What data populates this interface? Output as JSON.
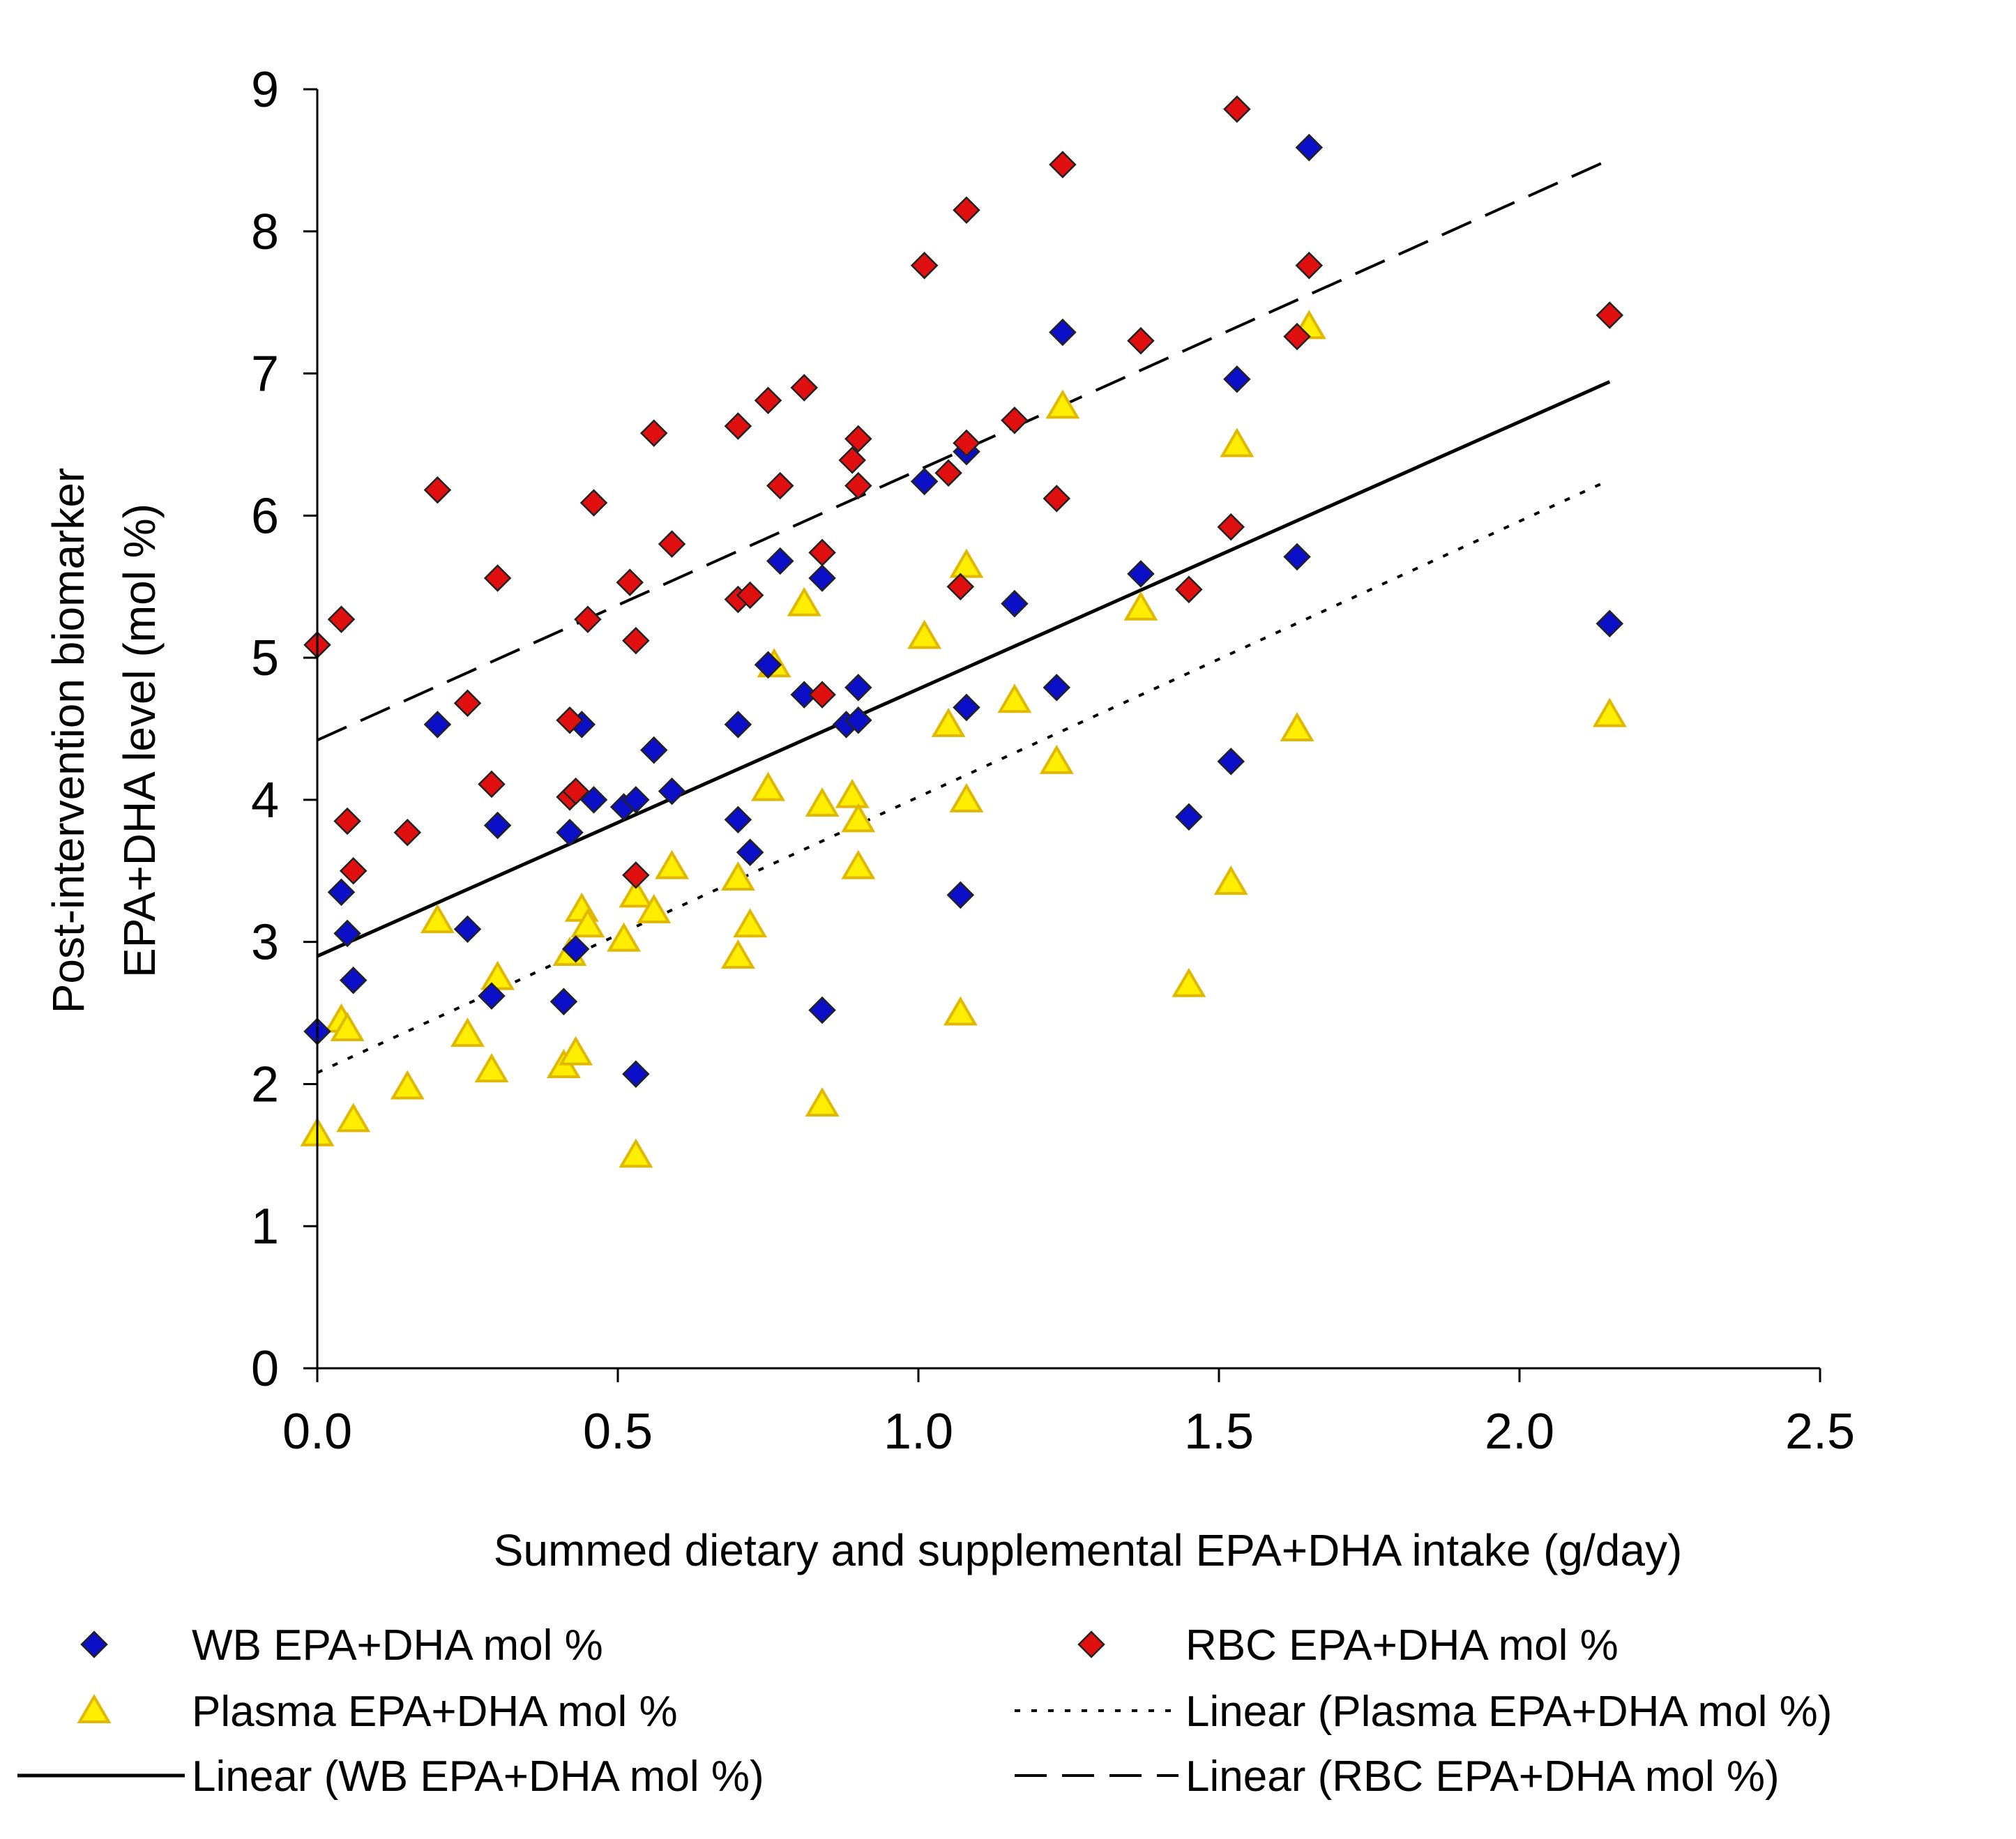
{
  "colors": {
    "wb": "#0b10c8",
    "rbc": "#e01010",
    "plasma": "#ffee00",
    "plasma_edge": "#e0b800",
    "marker_edge": "#222222",
    "axis": "#000000"
  },
  "chart_data": {
    "type": "scatter",
    "xlabel": "Summed dietary and supplemental EPA+DHA intake (g/day)",
    "ylabel_line1": "Post-intervention biomarker",
    "ylabel_line2": "EPA+DHA level (mol %)",
    "xlim": [
      0,
      2.5
    ],
    "ylim": [
      0,
      9
    ],
    "x_ticks": [
      0,
      0.5,
      1.0,
      1.5,
      2.0,
      2.5
    ],
    "x_tick_labels": [
      "0.0",
      "0.5",
      "1.0",
      "1.5",
      "2.0",
      "2.5"
    ],
    "y_ticks": [
      0,
      1,
      2,
      3,
      4,
      5,
      6,
      7,
      8,
      9
    ],
    "y_tick_labels": [
      "0",
      "1",
      "2",
      "3",
      "4",
      "5",
      "6",
      "7",
      "8",
      "9"
    ],
    "grid": false,
    "legend_position": "bottom",
    "series": [
      {
        "id": "wb",
        "name": "WB EPA+DHA mol %",
        "marker": "diamond",
        "points": [
          [
            0,
            2.37
          ],
          [
            0.04,
            3.35
          ],
          [
            0.05,
            3.06
          ],
          [
            0.06,
            2.73
          ],
          [
            0.2,
            4.53
          ],
          [
            0.25,
            3.09
          ],
          [
            0.29,
            2.62
          ],
          [
            0.3,
            3.82
          ],
          [
            0.41,
            2.58
          ],
          [
            0.42,
            3.77
          ],
          [
            0.43,
            2.95
          ],
          [
            0.44,
            4.53
          ],
          [
            0.46,
            4.0
          ],
          [
            0.51,
            3.95
          ],
          [
            0.53,
            4.0
          ],
          [
            0.53,
            2.07
          ],
          [
            0.56,
            4.35
          ],
          [
            0.59,
            4.06
          ],
          [
            0.7,
            4.53
          ],
          [
            0.7,
            3.86
          ],
          [
            0.72,
            3.63
          ],
          [
            0.75,
            4.95
          ],
          [
            0.77,
            5.68
          ],
          [
            0.81,
            4.74
          ],
          [
            0.84,
            5.56
          ],
          [
            0.84,
            2.52
          ],
          [
            0.88,
            4.53
          ],
          [
            0.9,
            4.79
          ],
          [
            0.9,
            4.56
          ],
          [
            1.01,
            6.24
          ],
          [
            1.08,
            6.45
          ],
          [
            1.07,
            3.33
          ],
          [
            1.08,
            4.65
          ],
          [
            1.16,
            5.38
          ],
          [
            1.23,
            4.79
          ],
          [
            1.24,
            7.29
          ],
          [
            1.37,
            5.59
          ],
          [
            1.45,
            3.88
          ],
          [
            1.52,
            4.27
          ],
          [
            1.53,
            6.96
          ],
          [
            1.63,
            5.71
          ],
          [
            1.65,
            8.59
          ],
          [
            2.15,
            5.24
          ]
        ]
      },
      {
        "id": "rbc",
        "name": "RBC EPA+DHA mol %",
        "marker": "diamond",
        "points": [
          [
            0,
            5.09
          ],
          [
            0.04,
            5.27
          ],
          [
            0.05,
            3.85
          ],
          [
            0.06,
            3.5
          ],
          [
            0.15,
            3.77
          ],
          [
            0.2,
            6.18
          ],
          [
            0.25,
            4.68
          ],
          [
            0.29,
            4.11
          ],
          [
            0.3,
            5.56
          ],
          [
            0.42,
            4.56
          ],
          [
            0.42,
            4.02
          ],
          [
            0.43,
            4.06
          ],
          [
            0.45,
            5.27
          ],
          [
            0.46,
            6.09
          ],
          [
            0.52,
            5.53
          ],
          [
            0.53,
            5.12
          ],
          [
            0.53,
            3.47
          ],
          [
            0.56,
            6.58
          ],
          [
            0.59,
            5.8
          ],
          [
            0.7,
            6.63
          ],
          [
            0.7,
            5.41
          ],
          [
            0.72,
            5.44
          ],
          [
            0.75,
            6.81
          ],
          [
            0.77,
            6.21
          ],
          [
            0.81,
            6.9
          ],
          [
            0.84,
            5.74
          ],
          [
            0.84,
            4.74
          ],
          [
            0.89,
            6.39
          ],
          [
            0.9,
            6.21
          ],
          [
            0.9,
            6.54
          ],
          [
            1.01,
            7.76
          ],
          [
            1.05,
            6.3
          ],
          [
            1.07,
            5.5
          ],
          [
            1.08,
            8.15
          ],
          [
            1.08,
            6.51
          ],
          [
            1.16,
            6.67
          ],
          [
            1.23,
            6.12
          ],
          [
            1.24,
            8.47
          ],
          [
            1.37,
            7.23
          ],
          [
            1.45,
            5.48
          ],
          [
            1.52,
            5.92
          ],
          [
            1.53,
            8.86
          ],
          [
            1.63,
            7.26
          ],
          [
            1.65,
            7.76
          ],
          [
            2.15,
            7.41
          ]
        ]
      },
      {
        "id": "plasma",
        "name": "Plasma EPA+DHA mol %",
        "marker": "triangle",
        "points": [
          [
            0,
            1.65
          ],
          [
            0.04,
            2.45
          ],
          [
            0.05,
            2.39
          ],
          [
            0.06,
            1.75
          ],
          [
            0.15,
            1.98
          ],
          [
            0.2,
            3.15
          ],
          [
            0.25,
            2.35
          ],
          [
            0.29,
            2.1
          ],
          [
            0.3,
            2.75
          ],
          [
            0.41,
            2.13
          ],
          [
            0.42,
            2.92
          ],
          [
            0.43,
            2.22
          ],
          [
            0.44,
            3.23
          ],
          [
            0.45,
            3.12
          ],
          [
            0.51,
            3.02
          ],
          [
            0.53,
            3.33
          ],
          [
            0.53,
            1.5
          ],
          [
            0.56,
            3.22
          ],
          [
            0.59,
            3.53
          ],
          [
            0.7,
            3.45
          ],
          [
            0.7,
            2.9
          ],
          [
            0.72,
            3.12
          ],
          [
            0.75,
            4.08
          ],
          [
            0.76,
            4.95
          ],
          [
            0.81,
            5.38
          ],
          [
            0.84,
            3.97
          ],
          [
            0.84,
            1.86
          ],
          [
            0.89,
            4.03
          ],
          [
            0.9,
            3.86
          ],
          [
            0.9,
            3.53
          ],
          [
            1.01,
            5.15
          ],
          [
            1.05,
            4.53
          ],
          [
            1.07,
            2.5
          ],
          [
            1.08,
            4.0
          ],
          [
            1.08,
            5.65
          ],
          [
            1.16,
            4.7
          ],
          [
            1.23,
            4.27
          ],
          [
            1.24,
            6.77
          ],
          [
            1.37,
            5.35
          ],
          [
            1.45,
            2.7
          ],
          [
            1.52,
            3.42
          ],
          [
            1.53,
            6.5
          ],
          [
            1.63,
            4.5
          ],
          [
            1.65,
            7.33
          ],
          [
            2.15,
            4.6
          ]
        ]
      }
    ],
    "trendlines": [
      {
        "id": "wb",
        "name": "Linear (WB EPA+DHA mol %)",
        "style": "solid",
        "intercept": 2.9,
        "slope": 1.88,
        "x_range": [
          0,
          2.15
        ]
      },
      {
        "id": "plasma",
        "name": "Linear (Plasma EPA+DHA mol %)",
        "style": "dotted",
        "intercept": 2.08,
        "slope": 1.94,
        "x_range": [
          0,
          2.15
        ]
      },
      {
        "id": "rbc",
        "name": "Linear (RBC EPA+DHA mol %)",
        "style": "dashed",
        "intercept": 4.42,
        "slope": 1.9,
        "x_range": [
          0,
          2.15
        ]
      }
    ]
  },
  "legend": {
    "items": [
      {
        "id": "wb",
        "label": "WB EPA+DHA mol %",
        "kind": "marker-diamond"
      },
      {
        "id": "rbc",
        "label": "RBC EPA+DHA mol %",
        "kind": "marker-diamond"
      },
      {
        "id": "plasma",
        "label": "Plasma EPA+DHA mol %",
        "kind": "marker-triangle"
      },
      {
        "id": "plasma-linear",
        "label": "Linear (Plasma EPA+DHA mol %)",
        "kind": "line-dotted"
      },
      {
        "id": "wb-linear",
        "label": "Linear (WB EPA+DHA mol %)",
        "kind": "line-solid"
      },
      {
        "id": "rbc-linear",
        "label": "Linear (RBC EPA+DHA mol %)",
        "kind": "line-dashed"
      }
    ]
  }
}
